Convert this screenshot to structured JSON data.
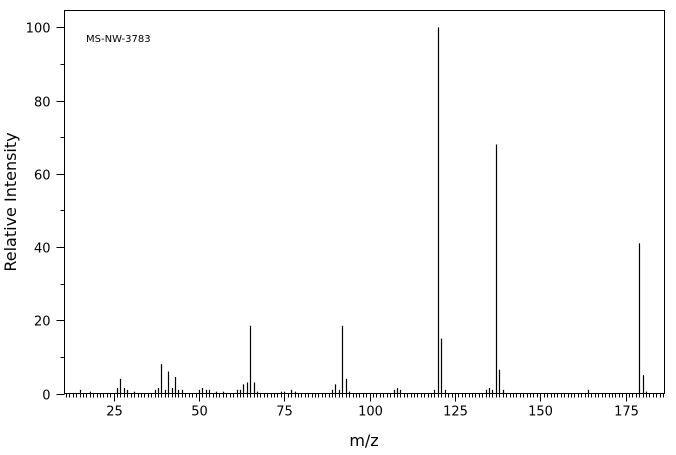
{
  "chart_data": {
    "type": "stem",
    "annotation": "MS-NW-3783",
    "x_label": "m/z",
    "y_label": "Relative Intensity",
    "x": [
      15,
      18,
      26,
      27,
      28,
      29,
      31,
      37,
      38,
      39,
      40,
      41,
      42,
      43,
      44,
      45,
      50,
      51,
      52,
      53,
      55,
      57,
      61,
      62,
      63,
      64,
      65,
      66,
      67,
      74,
      75,
      77,
      78,
      89,
      90,
      91,
      92,
      93,
      94,
      107,
      108,
      109,
      119,
      120,
      121,
      122,
      134,
      135,
      136,
      137,
      138,
      139,
      164,
      179,
      180,
      181
    ],
    "values": [
      1,
      0.5,
      1.5,
      4,
      1.5,
      1,
      0.5,
      1,
      1.5,
      8,
      1,
      6,
      1.5,
      4.5,
      1,
      1,
      1,
      1.5,
      1,
      1,
      0.5,
      0.5,
      1,
      1,
      2.5,
      3,
      18.5,
      3,
      0.5,
      0.5,
      0.5,
      1,
      0.5,
      1,
      2.5,
      1,
      18.5,
      4,
      0.5,
      1,
      1.5,
      1,
      1,
      100,
      15,
      1,
      1,
      1.5,
      1,
      68,
      6.5,
      1,
      1,
      41,
      5,
      0.5
    ],
    "color": "#000000",
    "xlim": [
      10.6,
      186.4
    ],
    "xticks": [
      25,
      50,
      75,
      100,
      125,
      150,
      175
    ],
    "ylim": [
      0,
      104.6
    ],
    "yticks": [
      0,
      20,
      40,
      60,
      80,
      100
    ]
  }
}
